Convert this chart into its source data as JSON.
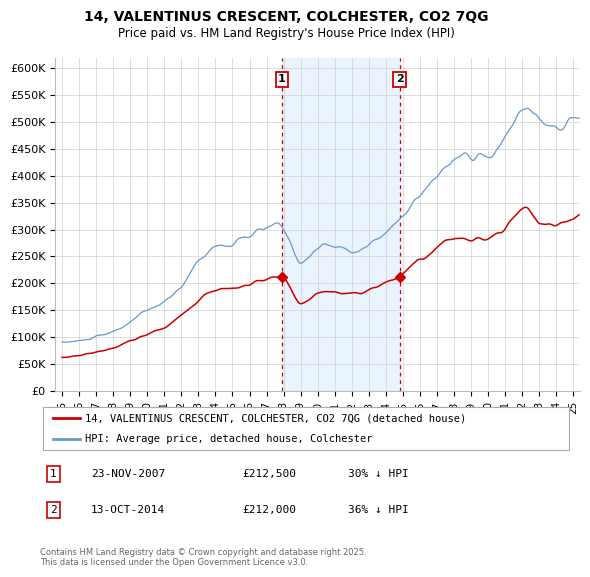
{
  "title_line1": "14, VALENTINUS CRESCENT, COLCHESTER, CO2 7QG",
  "title_line2": "Price paid vs. HM Land Registry's House Price Index (HPI)",
  "sale1_date": "23-NOV-2007",
  "sale1_price": 212500,
  "sale1_hpi": "30% ↓ HPI",
  "sale2_date": "13-OCT-2014",
  "sale2_price": 212000,
  "sale2_hpi": "36% ↓ HPI",
  "sale1_year": 2007.9,
  "sale2_year": 2014.8,
  "line1_color": "#cc0000",
  "line2_color": "#6699cc",
  "shading_color": "#ddeeff",
  "vline_color": "#cc0000",
  "legend_label1": "14, VALENTINUS CRESCENT, COLCHESTER, CO2 7QG (detached house)",
  "legend_label2": "HPI: Average price, detached house, Colchester",
  "footer": "Contains HM Land Registry data © Crown copyright and database right 2025.\nThis data is licensed under the Open Government Licence v3.0.",
  "ylim": [
    0,
    620000
  ],
  "yticks": [
    0,
    50000,
    100000,
    150000,
    200000,
    250000,
    300000,
    350000,
    400000,
    450000,
    500000,
    550000,
    600000
  ],
  "ytick_labels": [
    "£0",
    "£50K",
    "£100K",
    "£150K",
    "£200K",
    "£250K",
    "£300K",
    "£350K",
    "£400K",
    "£450K",
    "£500K",
    "£550K",
    "£600K"
  ],
  "xlim": [
    1994.6,
    2025.4
  ],
  "xtick_years": [
    1995,
    1996,
    1997,
    1998,
    1999,
    2000,
    2001,
    2002,
    2003,
    2004,
    2005,
    2006,
    2007,
    2008,
    2009,
    2010,
    2011,
    2012,
    2013,
    2014,
    2015,
    2016,
    2017,
    2018,
    2019,
    2020,
    2021,
    2022,
    2023,
    2024,
    2025
  ]
}
